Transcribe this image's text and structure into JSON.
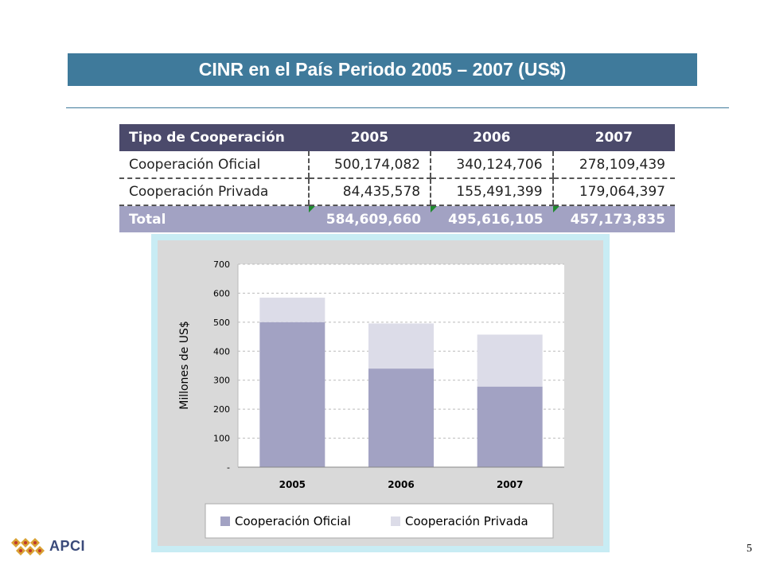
{
  "title": "CINR en el País Periodo 2005 – 2007 (US$)",
  "table": {
    "headers": [
      "Tipo de Cooperación",
      "2005",
      "2006",
      "2007"
    ],
    "rows": [
      [
        "Cooperación Oficial",
        "500,174,082",
        "340,124,706",
        "278,109,439"
      ],
      [
        "Cooperación Privada",
        "84,435,578",
        "155,491,399",
        "179,064,397"
      ]
    ],
    "total": [
      "Total",
      "584,609,660",
      "495,616,105",
      "457,173,835"
    ]
  },
  "chart_data": {
    "type": "bar",
    "stacked": true,
    "categories": [
      "2005",
      "2006",
      "2007"
    ],
    "series": [
      {
        "name": "Cooperación Oficial",
        "values": [
          500.2,
          340.1,
          278.1
        ],
        "color": "#a2a2c3"
      },
      {
        "name": "Cooperación Privada",
        "values": [
          84.4,
          155.5,
          179.1
        ],
        "color": "#dcdce8"
      }
    ],
    "ylabel": "Millones de US$",
    "ylim": [
      0,
      700
    ],
    "yticks": [
      0,
      100,
      200,
      300,
      400,
      500,
      600,
      700
    ],
    "ytick_labels": [
      "-",
      "100",
      "200",
      "300",
      "400",
      "500",
      "600",
      "700"
    ],
    "grid": true,
    "legend_position": "bottom"
  },
  "footer": {
    "logo_text": "APCI",
    "page_number": "5"
  },
  "colors": {
    "title_bar": "#3f7a9b",
    "table_header": "#4b4a6b",
    "table_total": "#a2a2c3",
    "chart_frame": "#c8ecf4",
    "chart_bg": "#d9d9d9"
  }
}
